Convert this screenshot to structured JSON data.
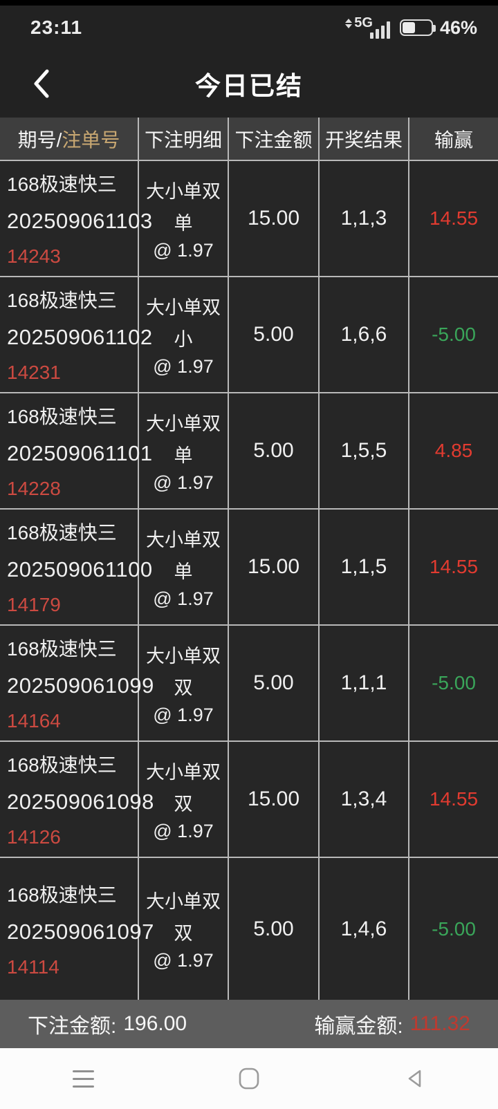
{
  "status_bar": {
    "time": "23:11",
    "network_label": "5G",
    "battery_text": "46%",
    "battery_level_percent": 46
  },
  "header": {
    "title": "今日已结"
  },
  "table": {
    "header": {
      "col1_part1": "期号/",
      "col1_part2": "注单号",
      "col2": "下注明细",
      "col3": "下注金额",
      "col4": "开奖结果",
      "col5": "输赢"
    },
    "rows": [
      {
        "game": "168极速快三",
        "period": "202509061103",
        "bet_id": "14243",
        "bet_type": "大小单双",
        "bet_pick": "单",
        "odds": "@ 1.97",
        "amount": "15.00",
        "result": "1,1,3",
        "winloss": "14.55",
        "winloss_state": "win"
      },
      {
        "game": "168极速快三",
        "period": "202509061102",
        "bet_id": "14231",
        "bet_type": "大小单双",
        "bet_pick": "小",
        "odds": "@ 1.97",
        "amount": "5.00",
        "result": "1,6,6",
        "winloss": "-5.00",
        "winloss_state": "loss"
      },
      {
        "game": "168极速快三",
        "period": "202509061101",
        "bet_id": "14228",
        "bet_type": "大小单双",
        "bet_pick": "单",
        "odds": "@ 1.97",
        "amount": "5.00",
        "result": "1,5,5",
        "winloss": "4.85",
        "winloss_state": "win"
      },
      {
        "game": "168极速快三",
        "period": "202509061100",
        "bet_id": "14179",
        "bet_type": "大小单双",
        "bet_pick": "单",
        "odds": "@ 1.97",
        "amount": "15.00",
        "result": "1,1,5",
        "winloss": "14.55",
        "winloss_state": "win"
      },
      {
        "game": "168极速快三",
        "period": "202509061099",
        "bet_id": "14164",
        "bet_type": "大小单双",
        "bet_pick": "双",
        "odds": "@ 1.97",
        "amount": "5.00",
        "result": "1,1,1",
        "winloss": "-5.00",
        "winloss_state": "loss"
      },
      {
        "game": "168极速快三",
        "period": "202509061098",
        "bet_id": "14126",
        "bet_type": "大小单双",
        "bet_pick": "双",
        "odds": "@ 1.97",
        "amount": "15.00",
        "result": "1,3,4",
        "winloss": "14.55",
        "winloss_state": "win"
      },
      {
        "game": "168极速快三",
        "period": "202509061097",
        "bet_id": "14114",
        "bet_type": "大小单双",
        "bet_pick": "双",
        "odds": "@ 1.97",
        "amount": "5.00",
        "result": "1,4,6",
        "winloss": "-5.00",
        "winloss_state": "loss"
      }
    ]
  },
  "summary": {
    "bet_total_label": "下注金额:",
    "bet_total_value": "196.00",
    "winloss_total_label": "输赢金额:",
    "winloss_total_value": "111.32"
  },
  "colors": {
    "win_red": "#e23b30",
    "loss_green": "#3aa65a",
    "bet_id_red": "#cc4a41",
    "accent_gold": "#c9a872",
    "summary_red": "#c0392f"
  },
  "nav_bar": {
    "icons": [
      "menu-icon",
      "home-icon",
      "back-icon"
    ]
  }
}
